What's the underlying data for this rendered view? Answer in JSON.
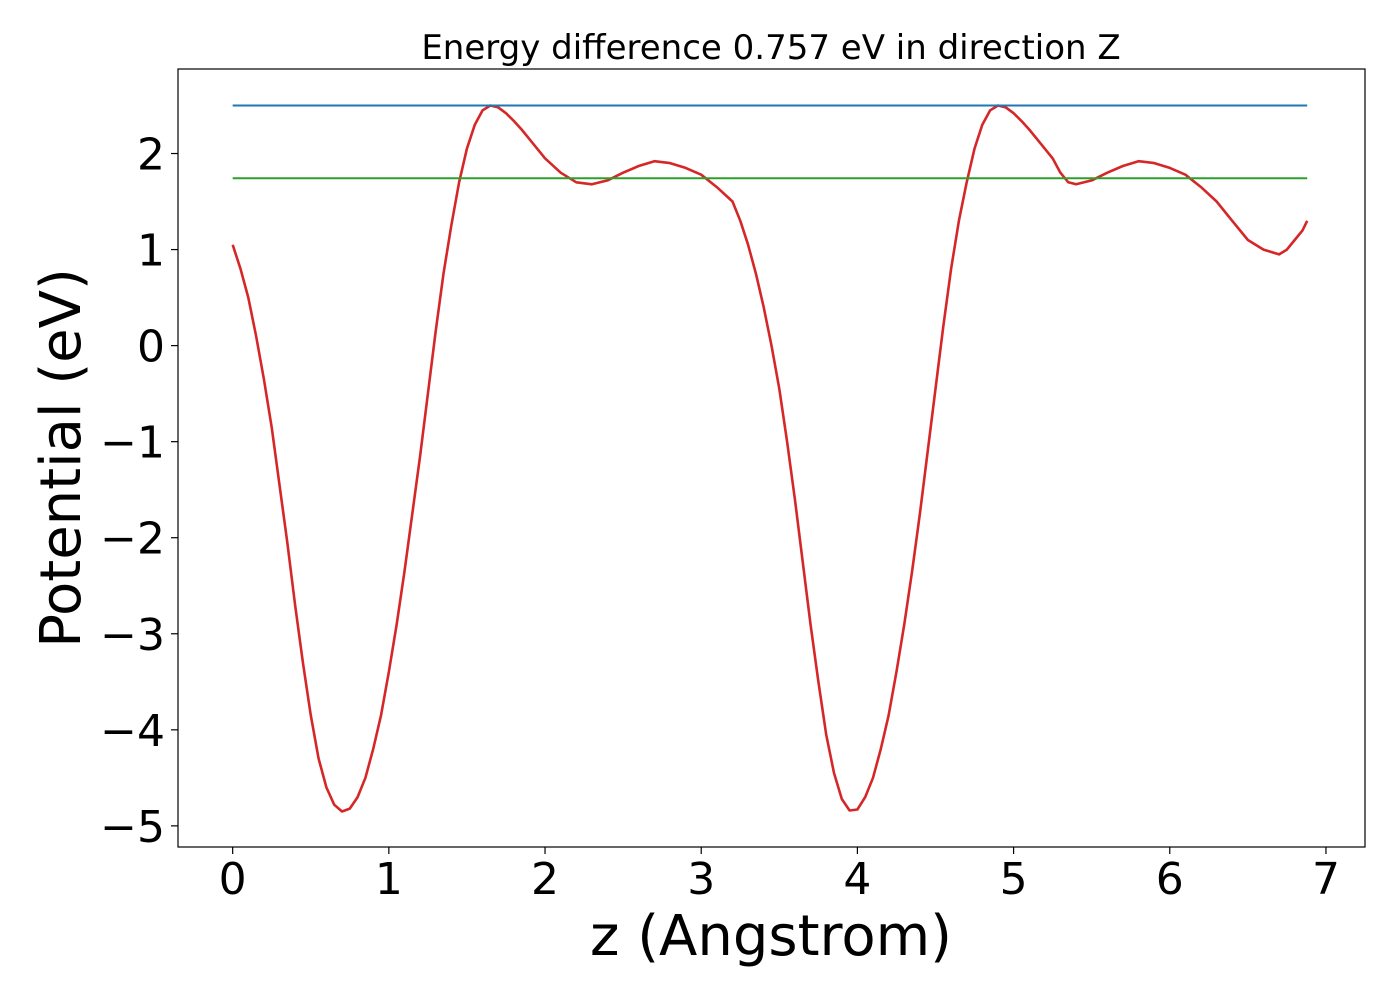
{
  "chart_data": {
    "type": "line",
    "title": "Energy difference 0.757 eV in direction Z",
    "xlabel": "z (Angstrom)",
    "ylabel": "Potential (eV)",
    "xlim": [
      -0.35,
      7.25
    ],
    "ylim": [
      -5.22,
      2.88
    ],
    "xticks": [
      0,
      1,
      2,
      3,
      4,
      5,
      6,
      7
    ],
    "xtick_labels": [
      "0",
      "1",
      "2",
      "3",
      "4",
      "5",
      "6",
      "7"
    ],
    "yticks": [
      -5,
      -4,
      -3,
      -2,
      -1,
      0,
      1,
      2
    ],
    "ytick_labels": [
      "−5",
      "−4",
      "−3",
      "−2",
      "−1",
      "0",
      "1",
      "2"
    ],
    "grid": false,
    "legend": false,
    "series": [
      {
        "kind": "curve",
        "color": "#d62728",
        "x": [
          0.0,
          0.05,
          0.1,
          0.15,
          0.2,
          0.25,
          0.3,
          0.35,
          0.4,
          0.45,
          0.5,
          0.55,
          0.6,
          0.65,
          0.7,
          0.75,
          0.8,
          0.85,
          0.9,
          0.95,
          1.0,
          1.05,
          1.1,
          1.15,
          1.2,
          1.25,
          1.3,
          1.35,
          1.4,
          1.45,
          1.5,
          1.55,
          1.6,
          1.65,
          1.7,
          1.75,
          1.8,
          1.85,
          1.9,
          1.95,
          2.0,
          2.1,
          2.2,
          2.3,
          2.4,
          2.5,
          2.6,
          2.7,
          2.8,
          2.9,
          3.0,
          3.1,
          3.2,
          3.25,
          3.3,
          3.35,
          3.4,
          3.45,
          3.5,
          3.55,
          3.6,
          3.65,
          3.7,
          3.75,
          3.8,
          3.85,
          3.9,
          3.95,
          4.0,
          4.05,
          4.1,
          4.15,
          4.2,
          4.25,
          4.3,
          4.35,
          4.4,
          4.45,
          4.5,
          4.55,
          4.6,
          4.65,
          4.7,
          4.75,
          4.8,
          4.85,
          4.9,
          4.95,
          5.0,
          5.05,
          5.1,
          5.15,
          5.2,
          5.25,
          5.3,
          5.35,
          5.4,
          5.5,
          5.6,
          5.7,
          5.8,
          5.9,
          6.0,
          6.1,
          6.2,
          6.3,
          6.4,
          6.5,
          6.6,
          6.7,
          6.75,
          6.8,
          6.85,
          6.88
        ],
        "y": [
          1.05,
          0.8,
          0.5,
          0.1,
          -0.35,
          -0.85,
          -1.45,
          -2.05,
          -2.7,
          -3.3,
          -3.85,
          -4.3,
          -4.6,
          -4.78,
          -4.85,
          -4.82,
          -4.7,
          -4.5,
          -4.2,
          -3.85,
          -3.4,
          -2.9,
          -2.35,
          -1.75,
          -1.15,
          -0.5,
          0.15,
          0.75,
          1.25,
          1.7,
          2.05,
          2.3,
          2.45,
          2.5,
          2.48,
          2.42,
          2.34,
          2.25,
          2.15,
          2.05,
          1.95,
          1.8,
          1.7,
          1.68,
          1.72,
          1.8,
          1.87,
          1.92,
          1.9,
          1.85,
          1.78,
          1.65,
          1.5,
          1.3,
          1.05,
          0.75,
          0.4,
          0.0,
          -0.45,
          -1.0,
          -1.6,
          -2.25,
          -2.9,
          -3.5,
          -4.05,
          -4.45,
          -4.72,
          -4.84,
          -4.83,
          -4.7,
          -4.5,
          -4.2,
          -3.85,
          -3.4,
          -2.9,
          -2.35,
          -1.75,
          -1.1,
          -0.45,
          0.2,
          0.8,
          1.3,
          1.7,
          2.05,
          2.3,
          2.45,
          2.5,
          2.48,
          2.42,
          2.34,
          2.25,
          2.15,
          2.05,
          1.95,
          1.8,
          1.7,
          1.68,
          1.72,
          1.8,
          1.87,
          1.92,
          1.9,
          1.85,
          1.78,
          1.65,
          1.5,
          1.3,
          1.1,
          1.0,
          0.95,
          1.0,
          1.1,
          1.2,
          1.3
        ]
      },
      {
        "kind": "hline",
        "color": "#1f77b4",
        "y": 2.5,
        "x_range": [
          0,
          6.88
        ]
      },
      {
        "kind": "hline",
        "color": "#2ca02c",
        "y": 1.743,
        "x_range": [
          0,
          6.88
        ]
      }
    ]
  }
}
